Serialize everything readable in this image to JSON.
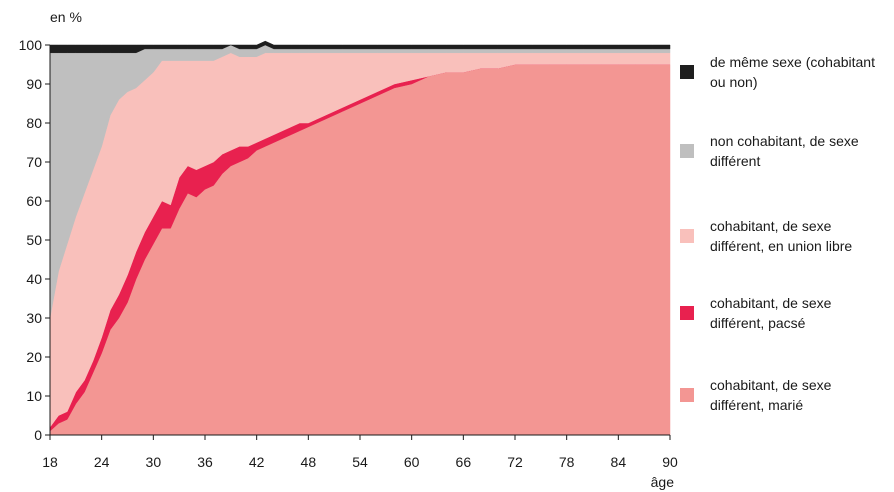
{
  "chart_data": {
    "type": "area",
    "stacked": true,
    "ylabel": "en %",
    "xlabel": "âge",
    "xlim": [
      18,
      90
    ],
    "ylim": [
      0,
      100
    ],
    "xticks": [
      "18",
      "24",
      "30",
      "36",
      "42",
      "48",
      "54",
      "60",
      "66",
      "72",
      "78",
      "84",
      "90"
    ],
    "yticks": [
      "0",
      "10",
      "20",
      "30",
      "40",
      "50",
      "60",
      "70",
      "80",
      "90",
      "100"
    ],
    "grid": false,
    "legend_position": "right",
    "x": [
      18,
      19,
      20,
      21,
      22,
      23,
      24,
      25,
      26,
      27,
      28,
      29,
      30,
      31,
      32,
      33,
      34,
      35,
      36,
      37,
      38,
      39,
      40,
      41,
      42,
      43,
      44,
      45,
      46,
      47,
      48,
      49,
      50,
      52,
      54,
      56,
      58,
      60,
      62,
      64,
      66,
      68,
      70,
      72,
      74,
      76,
      78,
      80,
      82,
      84,
      86,
      88,
      90
    ],
    "series": [
      {
        "name": "cohabitant, de sexe différent, marié",
        "color": "#f39693",
        "values": [
          1,
          3,
          4,
          8,
          11,
          16,
          21,
          27,
          30,
          34,
          40,
          45,
          49,
          53,
          53,
          58,
          62,
          61,
          63,
          64,
          67,
          69,
          70,
          71,
          73,
          74,
          75,
          76,
          77,
          78,
          79,
          80,
          81,
          83,
          85,
          87,
          89,
          90,
          92,
          93,
          93,
          94,
          94,
          95,
          95,
          95,
          95,
          95,
          95,
          95,
          95,
          95,
          95
        ]
      },
      {
        "name": "cohabitant, de sexe différent, pacsé",
        "color": "#e8214f",
        "values": [
          1,
          2,
          2,
          3,
          3,
          3,
          4,
          5,
          6,
          7,
          7,
          7,
          7,
          7,
          6,
          8,
          7,
          7,
          6,
          6,
          5,
          4,
          4,
          3,
          2,
          2,
          2,
          2,
          2,
          2,
          1,
          1,
          1,
          1,
          1,
          1,
          1,
          1,
          0,
          0,
          0,
          0,
          0,
          0,
          0,
          0,
          0,
          0,
          0,
          0,
          0,
          0,
          0
        ]
      },
      {
        "name": "cohabitant, de sexe différent, en union libre",
        "color": "#f9c0bb",
        "values": [
          28,
          37,
          43,
          45,
          48,
          49,
          49,
          50,
          50,
          47,
          42,
          39,
          37,
          36,
          37,
          30,
          27,
          28,
          27,
          26,
          25,
          25,
          23,
          23,
          22,
          22,
          21,
          20,
          19,
          18,
          18,
          17,
          16,
          14,
          12,
          10,
          8,
          7,
          6,
          5,
          5,
          4,
          4,
          3,
          3,
          3,
          3,
          3,
          3,
          3,
          3,
          3,
          3
        ]
      },
      {
        "name": "non cohabitant, de sexe différent",
        "color": "#bfbfbf",
        "values": [
          68,
          56,
          49,
          42,
          36,
          30,
          24,
          16,
          12,
          10,
          9,
          8,
          6,
          3,
          3,
          3,
          3,
          3,
          3,
          3,
          2,
          2,
          2,
          2,
          2,
          2,
          1,
          1,
          1,
          1,
          1,
          1,
          1,
          1,
          1,
          1,
          1,
          1,
          1,
          1,
          1,
          1,
          1,
          1,
          1,
          1,
          1,
          1,
          1,
          1,
          1,
          1,
          1
        ]
      },
      {
        "name": "de même sexe (cohabitant ou non)",
        "color": "#1e1e1e",
        "values": [
          2,
          2,
          2,
          2,
          2,
          2,
          2,
          2,
          2,
          2,
          2,
          1,
          1,
          1,
          1,
          1,
          1,
          1,
          1,
          1,
          1,
          0,
          1,
          1,
          1,
          1,
          1,
          1,
          1,
          1,
          1,
          1,
          1,
          1,
          1,
          1,
          1,
          1,
          1,
          1,
          1,
          1,
          1,
          1,
          1,
          1,
          1,
          1,
          1,
          1,
          1,
          1,
          1
        ]
      }
    ]
  },
  "legend": [
    {
      "label_line1": "de même sexe (cohabitant",
      "label_line2": "ou non)",
      "color": "#1e1e1e"
    },
    {
      "label_line1": "non cohabitant, de sexe",
      "label_line2": "différent",
      "color": "#bfbfbf"
    },
    {
      "label_line1": "cohabitant, de sexe",
      "label_line2": "différent, en union libre",
      "color": "#f9c0bb"
    },
    {
      "label_line1": "cohabitant, de sexe",
      "label_line2": "différent, pacsé",
      "color": "#e8214f"
    },
    {
      "label_line1": "cohabitant, de sexe",
      "label_line2": "différent, marié",
      "color": "#f39693"
    }
  ]
}
